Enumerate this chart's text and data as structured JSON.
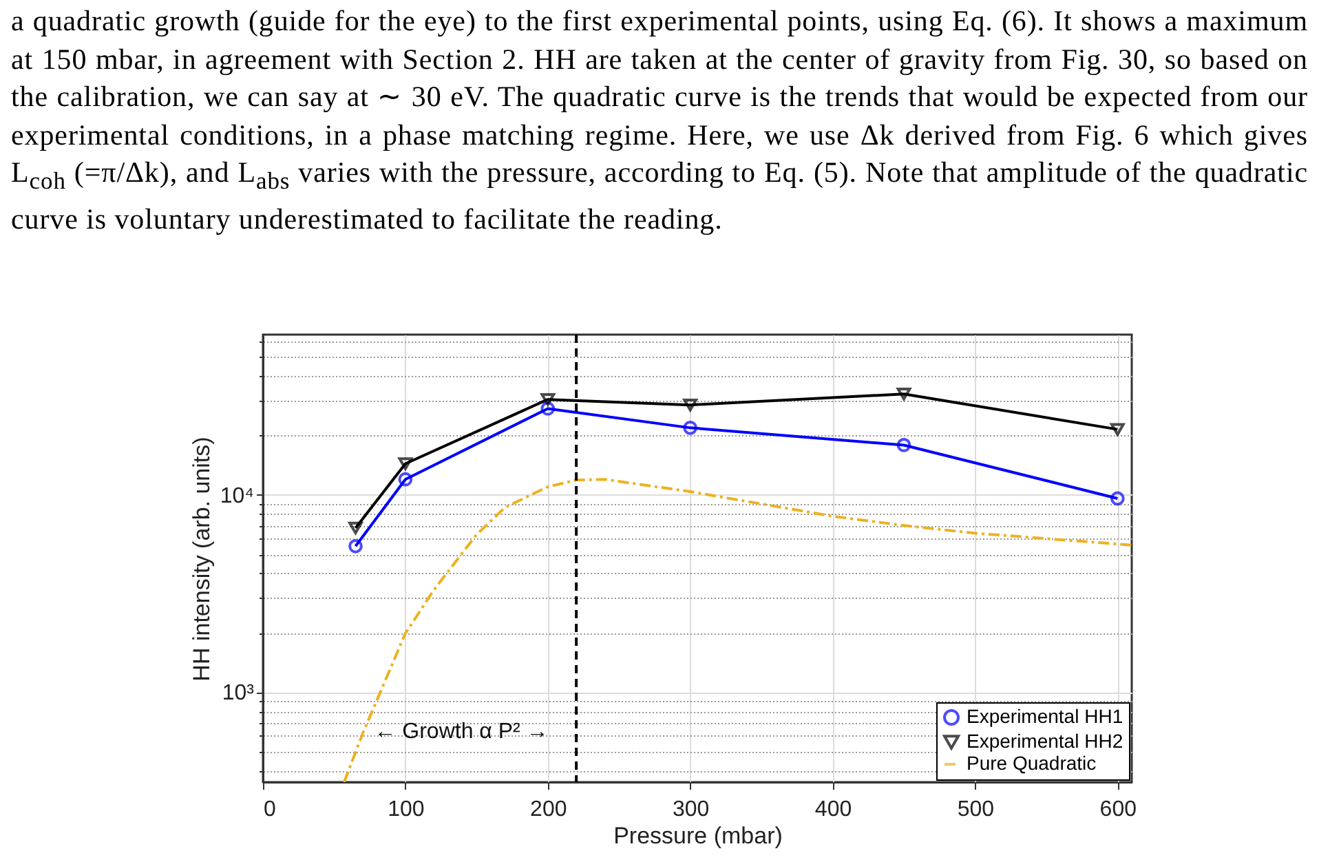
{
  "chart_data": {
    "type": "line",
    "xlabel": "Pressure (mbar)",
    "ylabel": "HH intensity (arb. units)",
    "xlim": [
      0,
      610
    ],
    "xticks": [
      0,
      100,
      200,
      300,
      400,
      500,
      600
    ],
    "ylim": [
      350,
      65000
    ],
    "log": true,
    "yticks": [
      {
        "value": 400,
        "label": null
      },
      {
        "value": 500,
        "label": null
      },
      {
        "value": 600,
        "label": null
      },
      {
        "value": 700,
        "label": null
      },
      {
        "value": 800,
        "label": null
      },
      {
        "value": 900,
        "label": null
      },
      {
        "value": 1000,
        "label": "10³"
      },
      {
        "value": 2000,
        "label": null
      },
      {
        "value": 3000,
        "label": null
      },
      {
        "value": 4000,
        "label": null
      },
      {
        "value": 5000,
        "label": null
      },
      {
        "value": 6000,
        "label": null
      },
      {
        "value": 7000,
        "label": null
      },
      {
        "value": 8000,
        "label": null
      },
      {
        "value": 9000,
        "label": null
      },
      {
        "value": 10000,
        "label": "10⁴"
      },
      {
        "value": 20000,
        "label": null
      },
      {
        "value": 30000,
        "label": null
      },
      {
        "value": 40000,
        "label": null
      },
      {
        "value": 50000,
        "label": null
      },
      {
        "value": 60000,
        "label": null
      }
    ],
    "grid": true,
    "legend": "bottom right",
    "series": [
      {
        "name": "Experimental HH1",
        "color": "#0000ff",
        "marker": "circle",
        "line_style": "solid",
        "x": [
          65,
          100,
          200,
          300,
          450,
          600
        ],
        "values": [
          5500,
          12000,
          27400,
          21900,
          17900,
          9600
        ]
      },
      {
        "name": "Experimental HH2",
        "color": "#000000",
        "marker": "triangle",
        "line_style": "solid",
        "x": [
          65,
          100,
          200,
          300,
          450,
          600
        ],
        "values": [
          6800,
          14400,
          30500,
          28600,
          32500,
          21500
        ]
      },
      {
        "name": "Pure Quadratic",
        "color": "#edb120",
        "marker": "none",
        "line_style": "dashed",
        "x": [
          57,
          70,
          100,
          120,
          150,
          170,
          200,
          220,
          240,
          300,
          400,
          450,
          500,
          600,
          610
        ],
        "values": [
          350,
          617,
          1990,
          3300,
          6300,
          8650,
          11000,
          11900,
          12000,
          10400,
          7800,
          7000,
          6400,
          5640,
          5570
        ]
      }
    ],
    "ref_lines": [
      {
        "axis": "x",
        "value": 220,
        "color": "#000000",
        "line_style": "dashed"
      }
    ],
    "annotations": [
      "a quadratic growth (guide for the eye) to the first experimental points, using Eq. (6). It shows a maximum at 150 mbar, in agreement with Section 2. HH are taken at the center of gravity from Fig. 30, so based on the calibration, we can say at ∼ 30 eV. The quadratic curve is the trends that would be expected from our experimental conditions, in a phase matching regime. Here, we use Δk derived from Fig. 6 which gives L$_{coh}$ (=π/Δk), and L$_{abs}$ varies with the pressure, according to Eq. (5). Note that amplitude of the quadratic curve is voluntary underestimated to facilitate the reading.",
      "← Growth α P² →"
    ]
  }
}
